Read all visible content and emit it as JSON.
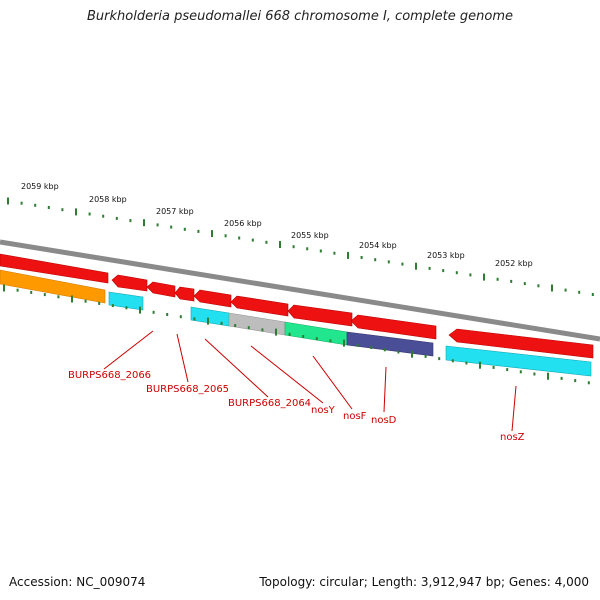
{
  "title": "Burkholderia pseudomallei 668 chromosome I, complete genome",
  "footer": {
    "accession": "Accession: NC_009074",
    "stats": "Topology: circular; Length: 3,912,947 bp; Genes: 4,000"
  },
  "kbp_labels": [
    "2059 kbp",
    "2058 kbp",
    "2057 kbp",
    "2056 kbp",
    "2055 kbp",
    "2054 kbp",
    "2053 kbp",
    "2052 kbp"
  ],
  "gene_labels": [
    "BURPS668_2066",
    "BURPS668_2065",
    "BURPS668_2064",
    "nosY",
    "nosF",
    "nosD",
    "nosZ"
  ],
  "colors": {
    "backbone": "#8a8a8a",
    "gene_red": "#ee1111",
    "orange": "#ff9900",
    "cyan": "#22e0f0",
    "grey": "#bdbdbd",
    "green": "#22e68e",
    "purple": "#4a4e96",
    "tick": "#2e7d32",
    "label_red": "#cc0000"
  }
}
